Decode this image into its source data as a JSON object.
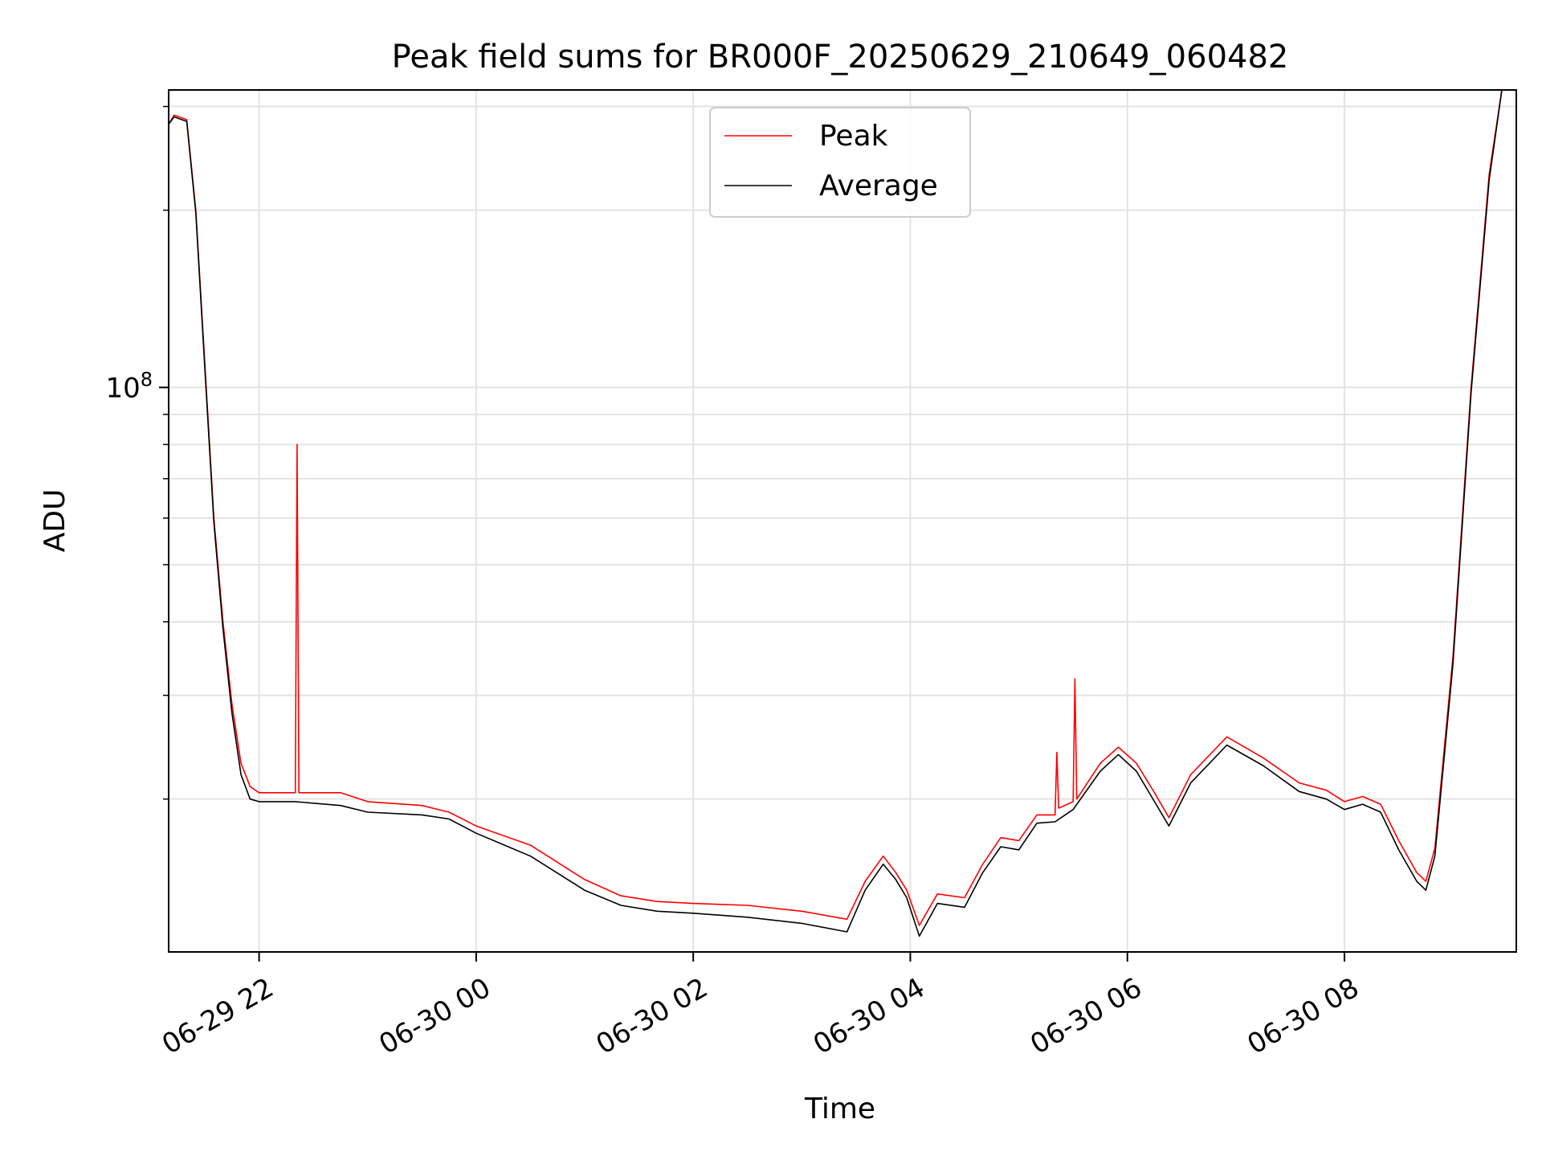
{
  "chart_data": {
    "type": "line",
    "title": "Peak field sums for BR000F_20250629_210649_060482",
    "xlabel": "Time",
    "ylabel": "ADU",
    "y_scale": "log",
    "x_range": [
      "2025-06-29 21:10",
      "2025-06-30 09:35"
    ],
    "ylim": [
      11000000,
      320000000
    ],
    "y_major_tick_labels": [
      {
        "value": 100000000,
        "base": "10",
        "exp": "8"
      }
    ],
    "y_minor_ticks": [
      20000000,
      30000000,
      40000000,
      50000000,
      60000000,
      70000000,
      80000000,
      90000000,
      200000000,
      300000000
    ],
    "x_tick_labels": [
      {
        "time": "2025-06-29 22:00",
        "label": "06-29 22"
      },
      {
        "time": "2025-06-30 00:00",
        "label": "06-30 00"
      },
      {
        "time": "2025-06-30 02:00",
        "label": "06-30 02"
      },
      {
        "time": "2025-06-30 04:00",
        "label": "06-30 04"
      },
      {
        "time": "2025-06-30 06:00",
        "label": "06-30 06"
      },
      {
        "time": "2025-06-30 08:00",
        "label": "06-30 08"
      }
    ],
    "grid": true,
    "legend_position": "top-center",
    "series": [
      {
        "name": "Peak",
        "color": "#ff0000",
        "points": [
          [
            "2025-06-29 21:10",
            280000000
          ],
          [
            "2025-06-29 21:13",
            290000000
          ],
          [
            "2025-06-29 21:20",
            285000000
          ],
          [
            "2025-06-29 21:25",
            200000000
          ],
          [
            "2025-06-29 21:30",
            110000000
          ],
          [
            "2025-06-29 21:35",
            60000000
          ],
          [
            "2025-06-29 21:40",
            40000000
          ],
          [
            "2025-06-29 21:45",
            29000000
          ],
          [
            "2025-06-29 21:50",
            23000000
          ],
          [
            "2025-06-29 21:55",
            21000000
          ],
          [
            "2025-06-29 22:00",
            20500000
          ],
          [
            "2025-06-29 22:20",
            20500000
          ],
          [
            "2025-06-29 22:21",
            80000000
          ],
          [
            "2025-06-29 22:22",
            20500000
          ],
          [
            "2025-06-29 22:45",
            20500000
          ],
          [
            "2025-06-29 23:00",
            19800000
          ],
          [
            "2025-06-29 23:30",
            19500000
          ],
          [
            "2025-06-29 23:45",
            19000000
          ],
          [
            "2025-06-30 00:00",
            18000000
          ],
          [
            "2025-06-30 00:30",
            16700000
          ],
          [
            "2025-06-30 01:00",
            14600000
          ],
          [
            "2025-06-30 01:20",
            13700000
          ],
          [
            "2025-06-30 01:40",
            13400000
          ],
          [
            "2025-06-30 02:00",
            13300000
          ],
          [
            "2025-06-30 02:30",
            13200000
          ],
          [
            "2025-06-30 03:00",
            12900000
          ],
          [
            "2025-06-30 03:25",
            12500000
          ],
          [
            "2025-06-30 03:35",
            14500000
          ],
          [
            "2025-06-30 03:45",
            16000000
          ],
          [
            "2025-06-30 03:52",
            15000000
          ],
          [
            "2025-06-30 03:58",
            14000000
          ],
          [
            "2025-06-30 04:05",
            12200000
          ],
          [
            "2025-06-30 04:15",
            13800000
          ],
          [
            "2025-06-30 04:30",
            13600000
          ],
          [
            "2025-06-30 04:40",
            15500000
          ],
          [
            "2025-06-30 04:50",
            17200000
          ],
          [
            "2025-06-30 05:00",
            17000000
          ],
          [
            "2025-06-30 05:10",
            18800000
          ],
          [
            "2025-06-30 05:20",
            18800000
          ],
          [
            "2025-06-30 05:21",
            24000000
          ],
          [
            "2025-06-30 05:22",
            19300000
          ],
          [
            "2025-06-30 05:30",
            19800000
          ],
          [
            "2025-06-30 05:31",
            32000000
          ],
          [
            "2025-06-30 05:32",
            20000000
          ],
          [
            "2025-06-30 05:45",
            23000000
          ],
          [
            "2025-06-30 05:55",
            24500000
          ],
          [
            "2025-06-30 06:05",
            23000000
          ],
          [
            "2025-06-30 06:15",
            20500000
          ],
          [
            "2025-06-30 06:23",
            18600000
          ],
          [
            "2025-06-30 06:35",
            22000000
          ],
          [
            "2025-06-30 06:55",
            25500000
          ],
          [
            "2025-06-30 07:15",
            23500000
          ],
          [
            "2025-06-30 07:35",
            21300000
          ],
          [
            "2025-06-30 07:50",
            20700000
          ],
          [
            "2025-06-30 08:00",
            19800000
          ],
          [
            "2025-06-30 08:10",
            20200000
          ],
          [
            "2025-06-30 08:20",
            19600000
          ],
          [
            "2025-06-30 08:30",
            17000000
          ],
          [
            "2025-06-30 08:40",
            15000000
          ],
          [
            "2025-06-30 08:45",
            14500000
          ],
          [
            "2025-06-30 08:50",
            16500000
          ],
          [
            "2025-06-30 09:00",
            35000000
          ],
          [
            "2025-06-30 09:10",
            100000000
          ],
          [
            "2025-06-30 09:20",
            230000000
          ],
          [
            "2025-06-30 09:27",
            320000000
          ]
        ]
      },
      {
        "name": "Average",
        "color": "#000000",
        "points": [
          [
            "2025-06-29 21:10",
            280000000
          ],
          [
            "2025-06-29 21:13",
            288000000
          ],
          [
            "2025-06-29 21:20",
            283000000
          ],
          [
            "2025-06-29 21:25",
            198000000
          ],
          [
            "2025-06-29 21:30",
            108000000
          ],
          [
            "2025-06-29 21:35",
            59000000
          ],
          [
            "2025-06-29 21:40",
            39000000
          ],
          [
            "2025-06-29 21:45",
            28000000
          ],
          [
            "2025-06-29 21:50",
            22000000
          ],
          [
            "2025-06-29 21:55",
            20000000
          ],
          [
            "2025-06-29 22:00",
            19800000
          ],
          [
            "2025-06-29 22:20",
            19800000
          ],
          [
            "2025-06-29 22:45",
            19500000
          ],
          [
            "2025-06-29 23:00",
            19000000
          ],
          [
            "2025-06-29 23:30",
            18800000
          ],
          [
            "2025-06-29 23:45",
            18500000
          ],
          [
            "2025-06-30 00:00",
            17500000
          ],
          [
            "2025-06-30 00:30",
            16000000
          ],
          [
            "2025-06-30 01:00",
            14000000
          ],
          [
            "2025-06-30 01:20",
            13200000
          ],
          [
            "2025-06-30 01:40",
            12900000
          ],
          [
            "2025-06-30 02:00",
            12800000
          ],
          [
            "2025-06-30 02:30",
            12600000
          ],
          [
            "2025-06-30 03:00",
            12300000
          ],
          [
            "2025-06-30 03:25",
            11900000
          ],
          [
            "2025-06-30 03:35",
            14000000
          ],
          [
            "2025-06-30 03:45",
            15500000
          ],
          [
            "2025-06-30 03:52",
            14600000
          ],
          [
            "2025-06-30 03:58",
            13600000
          ],
          [
            "2025-06-30 04:05",
            11700000
          ],
          [
            "2025-06-30 04:15",
            13300000
          ],
          [
            "2025-06-30 04:30",
            13100000
          ],
          [
            "2025-06-30 04:40",
            15000000
          ],
          [
            "2025-06-30 04:50",
            16600000
          ],
          [
            "2025-06-30 05:00",
            16400000
          ],
          [
            "2025-06-30 05:10",
            18200000
          ],
          [
            "2025-06-30 05:20",
            18300000
          ],
          [
            "2025-06-30 05:30",
            19200000
          ],
          [
            "2025-06-30 05:45",
            22300000
          ],
          [
            "2025-06-30 05:55",
            23800000
          ],
          [
            "2025-06-30 06:05",
            22300000
          ],
          [
            "2025-06-30 06:15",
            19800000
          ],
          [
            "2025-06-30 06:23",
            18000000
          ],
          [
            "2025-06-30 06:35",
            21300000
          ],
          [
            "2025-06-30 06:55",
            24700000
          ],
          [
            "2025-06-30 07:15",
            22800000
          ],
          [
            "2025-06-30 07:35",
            20600000
          ],
          [
            "2025-06-30 07:50",
            20000000
          ],
          [
            "2025-06-30 08:00",
            19200000
          ],
          [
            "2025-06-30 08:10",
            19600000
          ],
          [
            "2025-06-30 08:20",
            19000000
          ],
          [
            "2025-06-30 08:30",
            16400000
          ],
          [
            "2025-06-30 08:40",
            14500000
          ],
          [
            "2025-06-30 08:45",
            14000000
          ],
          [
            "2025-06-30 08:50",
            16000000
          ],
          [
            "2025-06-30 09:00",
            34000000
          ],
          [
            "2025-06-30 09:10",
            98000000
          ],
          [
            "2025-06-30 09:20",
            225000000
          ],
          [
            "2025-06-30 09:27",
            320000000
          ]
        ]
      }
    ]
  }
}
